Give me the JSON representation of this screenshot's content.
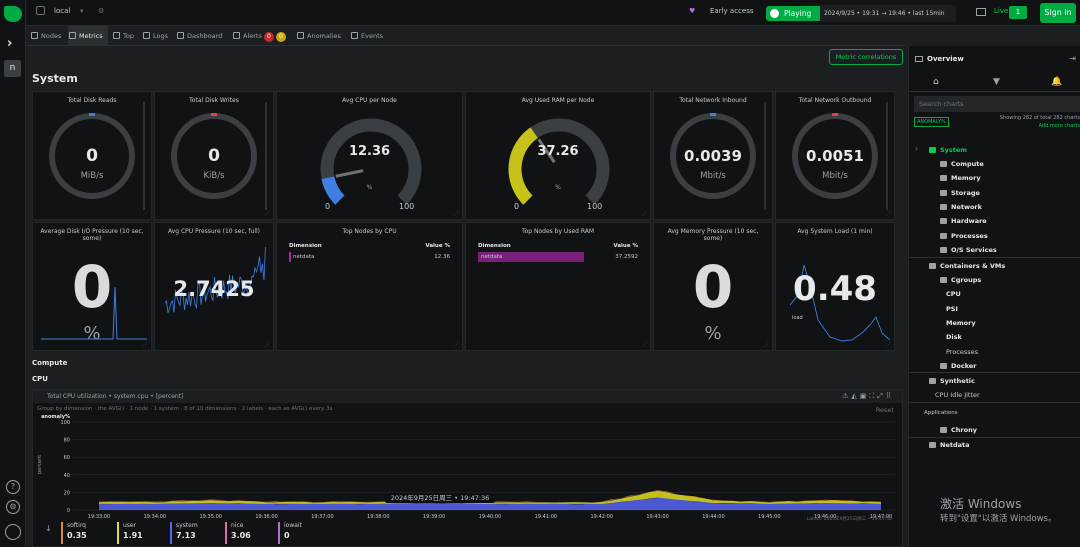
{
  "topbar": {
    "space": "local",
    "early_access": "Early access",
    "playing": "Playing",
    "date_time": "2024/9/25 • 19:31 → 19:46 • last 15min",
    "live_label": "Live",
    "live_count": "1",
    "sign_in": "Sign in"
  },
  "rail": {
    "space_letter": "n"
  },
  "tabs": [
    {
      "label": "Nodes"
    },
    {
      "label": "Metrics"
    },
    {
      "label": "Top"
    },
    {
      "label": "Logs"
    },
    {
      "label": "Dashboard"
    },
    {
      "label": "Alerts"
    },
    {
      "label": "Anomalies"
    },
    {
      "label": "Events"
    }
  ],
  "alert_counts": {
    "critical": "0",
    "warning": "0"
  },
  "main": {
    "metric_correlations": "Metric correlations",
    "section_title": "System",
    "compute_heading": "Compute",
    "cpu_heading": "CPU"
  },
  "cards": {
    "disk_reads": {
      "title": "Total Disk Reads",
      "value": "0",
      "unit": "MiB/s"
    },
    "disk_writes": {
      "title": "Total Disk Writes",
      "value": "0",
      "unit": "KiB/s"
    },
    "cpu_node": {
      "title": "Avg CPU per Node",
      "value": "12.36",
      "unit": "%",
      "min": "0",
      "max": "100",
      "percent": 12.36
    },
    "ram_node": {
      "title": "Avg Used RAM per Node",
      "value": "37.26",
      "unit": "%",
      "min": "0",
      "max": "100",
      "percent": 37.26
    },
    "net_in": {
      "title": "Total Network Inbound",
      "value": "0.0039",
      "unit": "Mbit/s"
    },
    "net_out": {
      "title": "Total Network Outbound",
      "value": "0.0051",
      "unit": "Mbit/s"
    },
    "disk_pressure": {
      "title": "Average Disk I/O Pressure (10 sec, some)",
      "value": "0",
      "unit": "%"
    },
    "cpu_pressure": {
      "title": "Avg CPU Pressure (10 sec, full)",
      "value": "2.7425"
    },
    "top_cpu": {
      "title": "Top Nodes by CPU",
      "col_dim": "Dimension",
      "col_val": "Value %",
      "row_name": "netdata",
      "row_val": "12.36"
    },
    "top_ram": {
      "title": "Top Nodes by Used RAM",
      "col_dim": "Dimension",
      "col_val": "Value %",
      "row_name": "netdata",
      "row_val": "37.2592"
    },
    "mem_pressure": {
      "title": "Avg Memory Pressure (10 sec, some)",
      "value": "0",
      "unit": "%"
    },
    "sys_load": {
      "title": "Avg System Load (1 min)",
      "value": "0.48",
      "unit": "load"
    }
  },
  "cpu_chart": {
    "title": "Total CPU utilization • system.cpu • [percent]",
    "toolbar": "Group by dimension  ·  the AVG()  ·  1 node  ·  1 system  ·  8 of 10 dimensions  ·  2 labels  ·  each as AVG() every 3s",
    "reset": "Reset",
    "latest": "Latest: 2024年9月25日周三 • 19:47:36",
    "hover_time": "2024年9月25日周三 • 19:47:36",
    "legend": [
      {
        "name": "softirq",
        "value": "0.35",
        "color": "#e48a2c"
      },
      {
        "name": "user",
        "value": "1.91",
        "color": "#e3de1f"
      },
      {
        "name": "system",
        "value": "7.13",
        "color": "#5765f2"
      },
      {
        "name": "nice",
        "value": "3.06",
        "color": "#d86fa0"
      },
      {
        "name": "iowait",
        "value": "0",
        "color": "#b26fd8"
      }
    ]
  },
  "chart_data": {
    "type": "area",
    "title": "Total CPU utilization • system.cpu • [percent]",
    "ylabel": "percent",
    "ylim": [
      0,
      100
    ],
    "y_ticks": [
      "anomaly%",
      "100",
      "80",
      "60",
      "40",
      "20",
      "0"
    ],
    "x": [
      "19:33:00",
      "19:34:00",
      "19:35:00",
      "19:36:00",
      "19:37:00",
      "19:38:00",
      "19:39:00",
      "19:40:00",
      "19:41:00",
      "19:42:00",
      "19:43:00",
      "19:44:00",
      "19:45:00",
      "19:46:00",
      "19:47:00"
    ],
    "series": [
      {
        "name": "system",
        "color": "#5765f2",
        "values": [
          7,
          7,
          8,
          7,
          7,
          7,
          8,
          7,
          7,
          7,
          14,
          8,
          7,
          8,
          7
        ]
      },
      {
        "name": "user",
        "color": "#e3de1f",
        "values": [
          2,
          2,
          3,
          2,
          2,
          2,
          3,
          2,
          2,
          2,
          8,
          3,
          2,
          3,
          2
        ]
      },
      {
        "name": "softirq",
        "color": "#e48a2c",
        "values": [
          0.4,
          0.3,
          0.4,
          0.3,
          0.4,
          0.3,
          0.4,
          0.3,
          0.4,
          0.3,
          0.5,
          0.4,
          0.3,
          0.4,
          0.35
        ]
      }
    ]
  },
  "rpanel": {
    "title": "Overview",
    "search_placeholder": "Search charts",
    "anomaly_tag": "ANOMALY%",
    "showing": "Showing 282 of total 282 charts",
    "add_more": "Add more charts",
    "nav": [
      {
        "label": "System"
      },
      {
        "label": "Compute"
      },
      {
        "label": "Memory"
      },
      {
        "label": "Storage"
      },
      {
        "label": "Network"
      },
      {
        "label": "Hardware"
      },
      {
        "label": "Processes"
      },
      {
        "label": "O/S Services"
      },
      {
        "label": "Containers & VMs"
      },
      {
        "label": "Cgroups"
      },
      {
        "label": "CPU"
      },
      {
        "label": "PSI"
      },
      {
        "label": "Memory"
      },
      {
        "label": "Disk"
      },
      {
        "label": "Processes"
      },
      {
        "label": "Docker"
      },
      {
        "label": "Synthetic"
      },
      {
        "label": "CPU Idle Jitter"
      },
      {
        "label": "Applications"
      },
      {
        "label": "Chrony"
      },
      {
        "label": "Netdata"
      }
    ]
  },
  "watermark": {
    "line1": "激活 Windows",
    "line2": "转到\"设置\"以激活 Windows。"
  }
}
